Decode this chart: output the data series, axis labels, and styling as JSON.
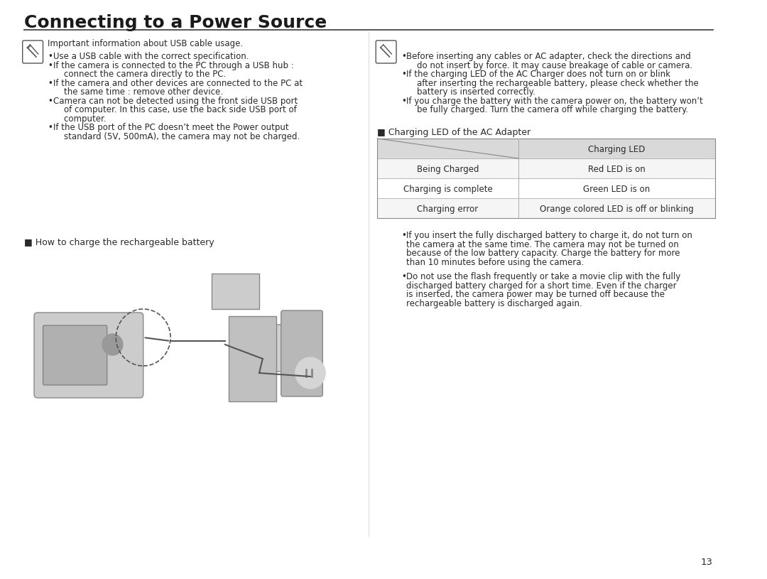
{
  "title": "Connecting to a Power Source",
  "title_fontsize": 18,
  "title_color": "#1a1a1a",
  "background_color": "#ffffff",
  "page_number": "13",
  "left_column": {
    "note_icon_text": "Important information about USB cable usage.",
    "bullets_left": [
      "Use a USB cable with the correct specification.",
      "If the camera is connected to the PC through a USB hub :\n  connect the camera directly to the PC.",
      "If the camera and other devices are connected to the PC at\n  the same time : remove other device.",
      "Camera can not be detected using the front side USB port\n  of computer. In this case, use the back side USB port of\n  computer.",
      "If the USB port of the PC doesn’t meet the Power output\n  standard (5V, 500mA), the camera may not be charged."
    ],
    "section_label": "■ How to charge the rechargeable battery"
  },
  "right_column": {
    "note_bullets": [
      "Before inserting any cables or AC adapter, check the directions and\n  do not insert by force. It may cause breakage of cable or camera.",
      "If the charging LED of the AC Charger does not turn on or blink\n  after inserting the rechargeable battery, please check whether the\n  battery is inserted correctly.",
      "If you charge the battery with the camera power on, the battery won’t\n  be fully charged. Turn the camera off while charging the battery."
    ],
    "table_title": "■ Charging LED of the AC Adapter",
    "table_header": [
      "",
      "Charging LED"
    ],
    "table_rows": [
      [
        "Being Charged",
        "Red LED is on"
      ],
      [
        "Charging is complete",
        "Green LED is on"
      ],
      [
        "Charging error",
        "Orange colored LED is off or blinking"
      ]
    ],
    "table_bg_header": "#d9d9d9",
    "table_bg_row": "#f5f5f5",
    "table_bg_alt": "#ffffff",
    "bullet_after_table": [
      "If you insert the fully discharged battery to charge it, do not turn on\nthe camera at the same time. The camera may not be turned on\nbecause of the low battery capacity. Charge the battery for more\nthan 10 minutes before using the camera.",
      "Do not use the flash frequently or take a movie clip with the fully\ndischarged battery charged for a short time. Even if the charger\nis inserted, the camera power may be turned off because the\nrechargeable battery is discharged again."
    ]
  },
  "text_color": "#2a2a2a",
  "text_fontsize": 8.5,
  "divider_color": "#555555"
}
